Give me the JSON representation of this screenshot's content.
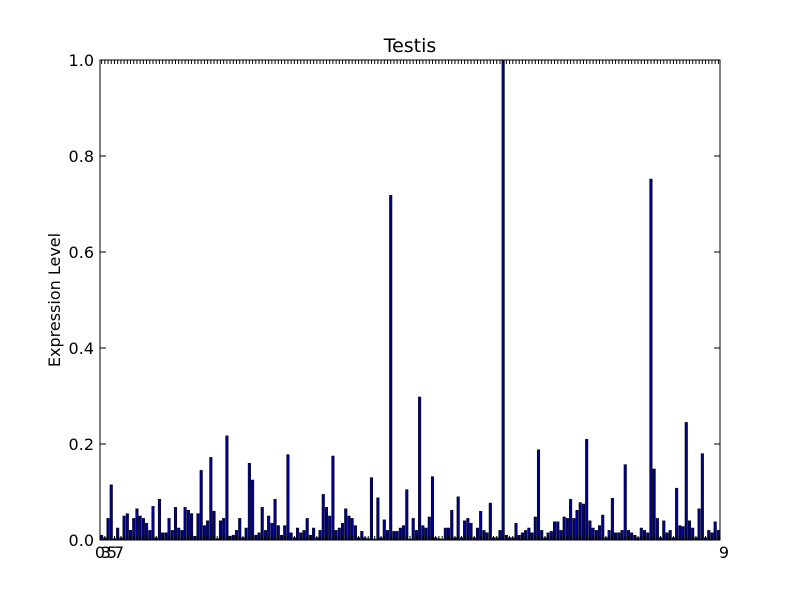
{
  "chart_data": {
    "type": "bar",
    "title": "Testis",
    "ylabel": "Expression Level",
    "xlabel": "",
    "ylim": [
      0,
      1.0
    ],
    "yticks": [
      "0.0",
      "0.2",
      "0.4",
      "0.6",
      "0.8",
      "1.0"
    ],
    "xtick_labels": [
      "0",
      "3",
      "5",
      "7",
      "9"
    ],
    "grid": false,
    "bar_color": "#00008b",
    "values": [
      0.01,
      0.005,
      0.045,
      0.115,
      0.003,
      0.025,
      0.005,
      0.05,
      0.055,
      0.02,
      0.045,
      0.065,
      0.05,
      0.045,
      0.035,
      0.02,
      0.07,
      0.005,
      0.085,
      0.015,
      0.015,
      0.045,
      0.02,
      0.068,
      0.025,
      0.02,
      0.068,
      0.062,
      0.055,
      0.008,
      0.055,
      0.145,
      0.03,
      0.04,
      0.172,
      0.06,
      0.003,
      0.04,
      0.045,
      0.217,
      0.008,
      0.01,
      0.02,
      0.045,
      0.005,
      0.025,
      0.16,
      0.125,
      0.01,
      0.015,
      0.068,
      0.02,
      0.05,
      0.035,
      0.085,
      0.03,
      0.01,
      0.03,
      0.178,
      0.015,
      0.005,
      0.025,
      0.015,
      0.02,
      0.045,
      0.01,
      0.025,
      0.005,
      0.02,
      0.095,
      0.068,
      0.05,
      0.175,
      0.02,
      0.025,
      0.035,
      0.065,
      0.05,
      0.045,
      0.03,
      0.005,
      0.018,
      0.005,
      0.003,
      0.13,
      0.002,
      0.088,
      0.005,
      0.042,
      0.02,
      0.718,
      0.018,
      0.018,
      0.025,
      0.03,
      0.105,
      0.002,
      0.045,
      0.02,
      0.298,
      0.03,
      0.025,
      0.048,
      0.132,
      0.005,
      0.003,
      0.002,
      0.025,
      0.025,
      0.062,
      0.005,
      0.09,
      0.005,
      0.04,
      0.045,
      0.035,
      0.005,
      0.025,
      0.06,
      0.02,
      0.015,
      0.077,
      0.005,
      0.005,
      0.02,
      1.0,
      0.01,
      0.005,
      0.005,
      0.035,
      0.01,
      0.015,
      0.02,
      0.025,
      0.015,
      0.048,
      0.188,
      0.02,
      0.005,
      0.015,
      0.018,
      0.038,
      0.038,
      0.02,
      0.048,
      0.045,
      0.085,
      0.045,
      0.062,
      0.078,
      0.075,
      0.21,
      0.04,
      0.025,
      0.02,
      0.03,
      0.052,
      0.005,
      0.02,
      0.087,
      0.015,
      0.015,
      0.02,
      0.157,
      0.02,
      0.015,
      0.01,
      0.005,
      0.025,
      0.02,
      0.015,
      0.752,
      0.148,
      0.045,
      0.005,
      0.04,
      0.015,
      0.02,
      0.005,
      0.108,
      0.03,
      0.028,
      0.245,
      0.04,
      0.025,
      0.005,
      0.065,
      0.18,
      0.005,
      0.02,
      0.015,
      0.038,
      0.02
    ]
  }
}
